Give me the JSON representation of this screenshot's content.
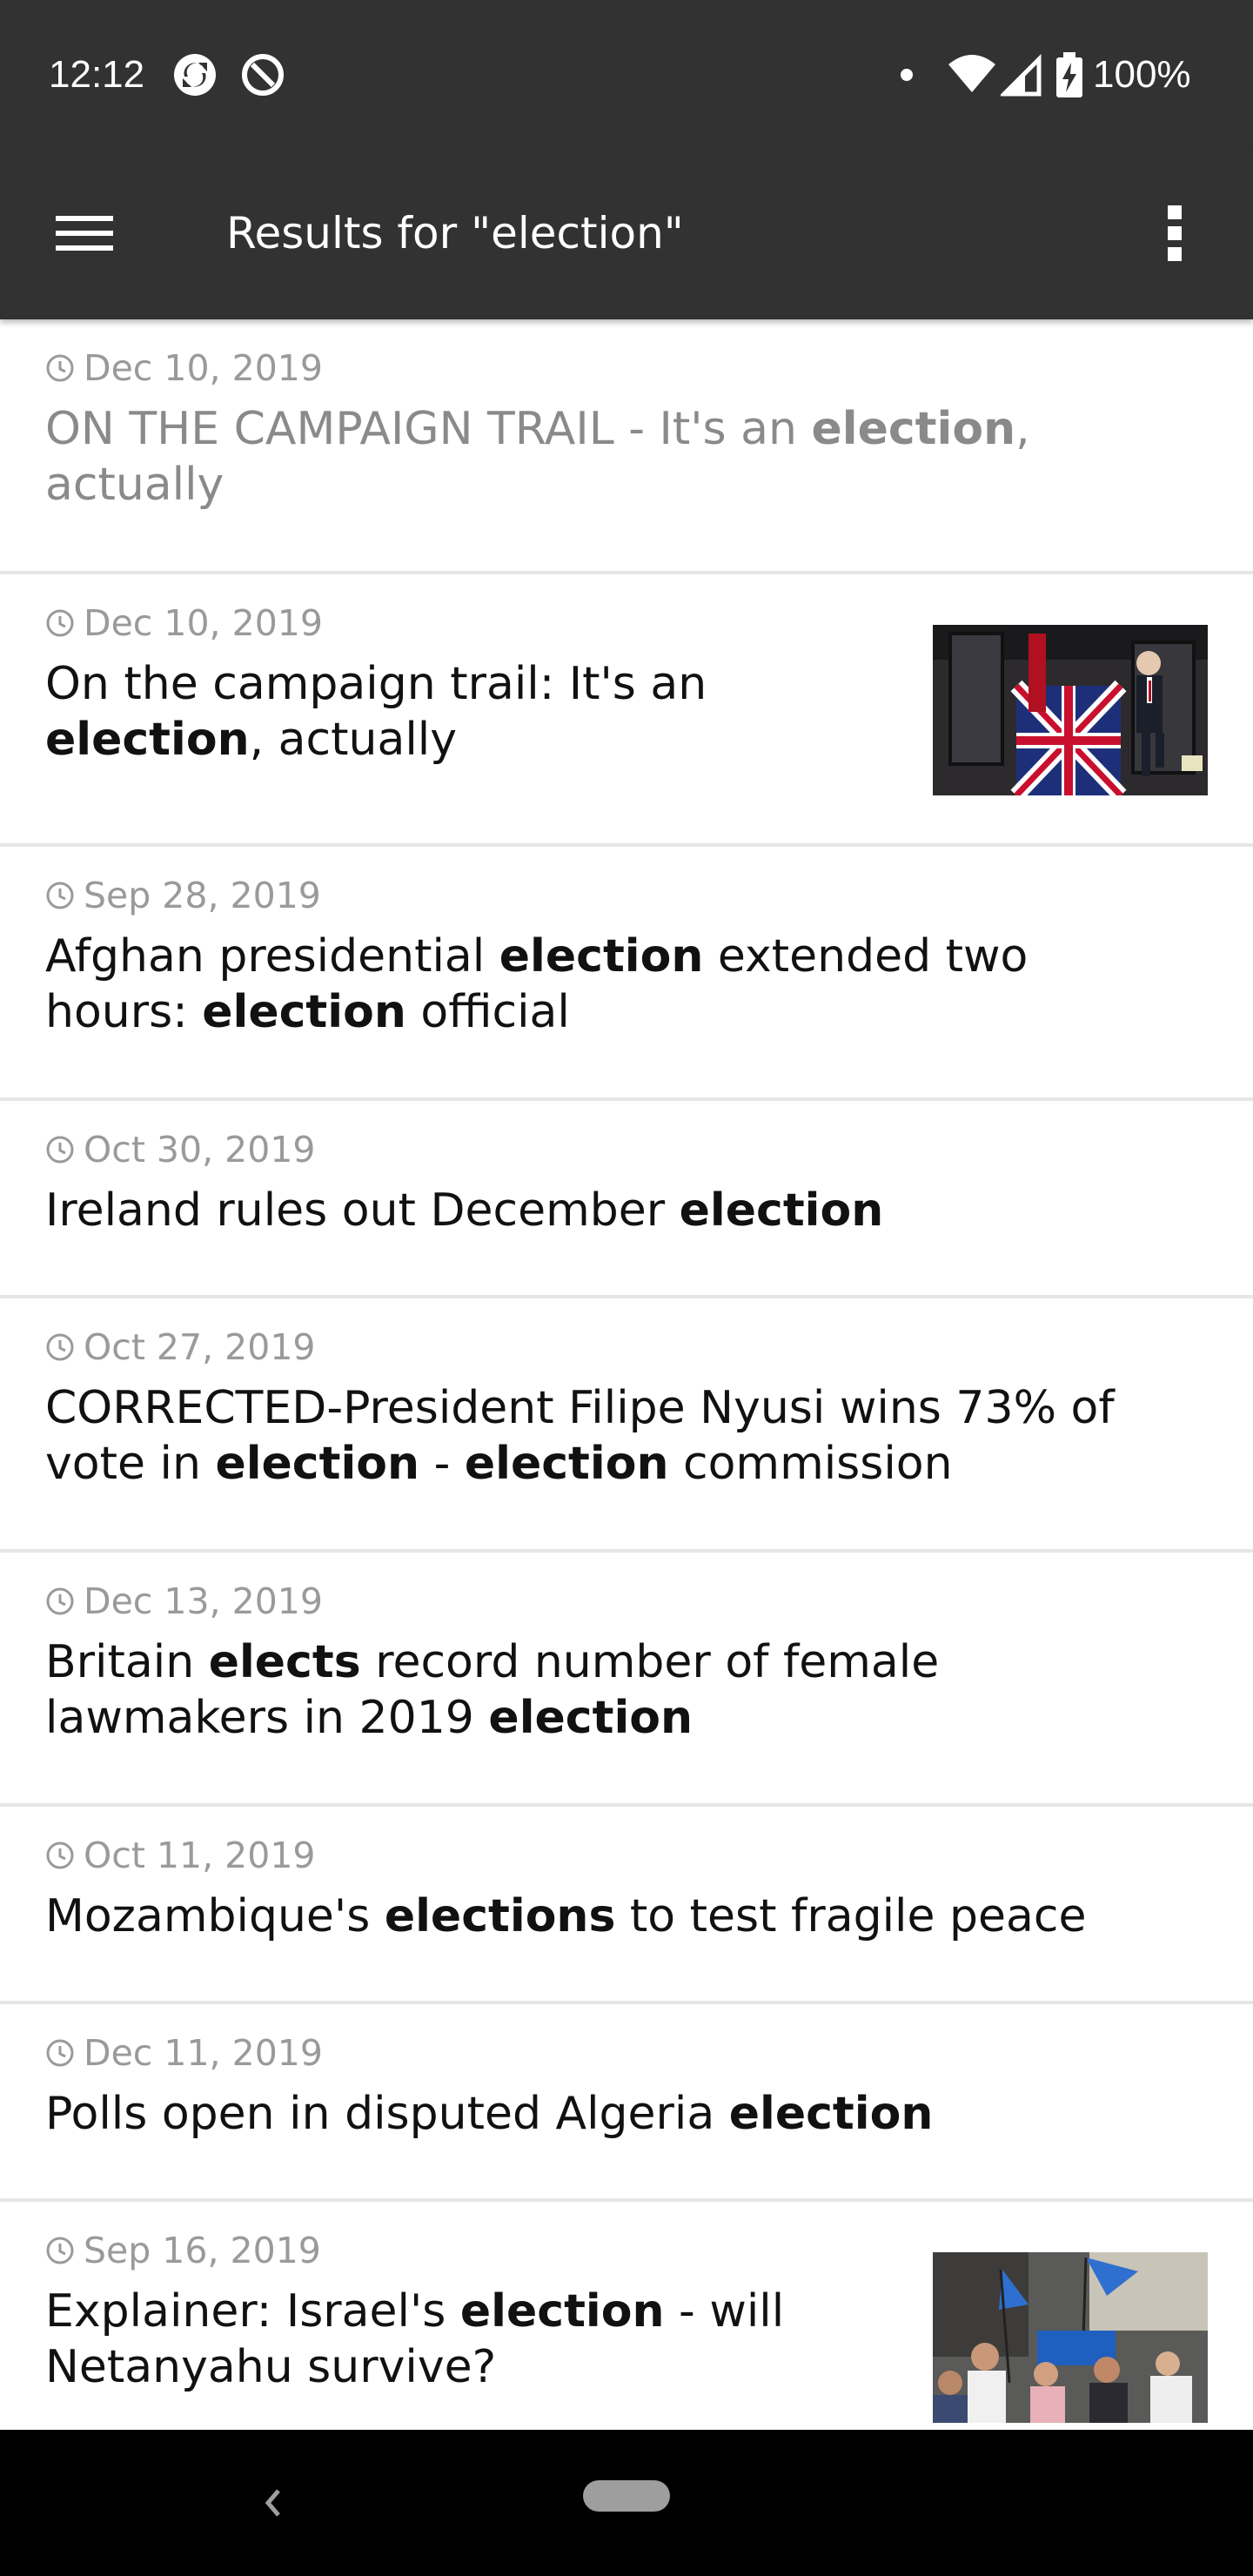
{
  "status_bar": {
    "time": "12:12",
    "battery": "100%"
  },
  "toolbar": {
    "title": "Results for \"election\""
  },
  "results": [
    {
      "date": "Dec 10, 2019",
      "title_parts": [
        {
          "t": "ON THE CAMPAIGN TRAIL - It's an ",
          "b": false
        },
        {
          "t": "election",
          "b": true
        },
        {
          "t": ",",
          "b": false
        },
        {
          "t": "actually",
          "b": false
        }
      ]
    },
    {
      "date": "Dec 10, 2019",
      "title_parts": [
        {
          "t": "On the campaign trail: It's an",
          "b": false
        },
        {
          "t": "election",
          "b": true
        },
        {
          "t": ", actually",
          "b": false
        }
      ]
    },
    {
      "date": "Sep 28, 2019",
      "title_parts": [
        {
          "t": "Afghan presidential ",
          "b": false
        },
        {
          "t": "election",
          "b": true
        },
        {
          "t": " extended two",
          "b": false
        },
        {
          "t": "hours: ",
          "b": false
        },
        {
          "t": "election",
          "b": true
        },
        {
          "t": " official",
          "b": false
        }
      ]
    },
    {
      "date": "Oct 30, 2019",
      "title_parts": [
        {
          "t": "Ireland rules out December ",
          "b": false
        },
        {
          "t": "election",
          "b": true
        }
      ]
    },
    {
      "date": "Oct 27, 2019",
      "title_parts": [
        {
          "t": "CORRECTED-President Filipe Nyusi wins 73% of",
          "b": false
        },
        {
          "t": "vote in ",
          "b": false
        },
        {
          "t": "election",
          "b": true
        },
        {
          "t": " - ",
          "b": false
        },
        {
          "t": "election",
          "b": true
        },
        {
          "t": " commission",
          "b": false
        }
      ]
    },
    {
      "date": "Dec 13, 2019",
      "title_parts": [
        {
          "t": "Britain ",
          "b": false
        },
        {
          "t": "elects",
          "b": true
        },
        {
          "t": " record number of female",
          "b": false
        },
        {
          "t": "lawmakers in 2019 ",
          "b": false
        },
        {
          "t": "election",
          "b": true
        }
      ]
    },
    {
      "date": "Oct 11, 2019",
      "title_parts": [
        {
          "t": "Mozambique's ",
          "b": false
        },
        {
          "t": "elections",
          "b": true
        },
        {
          "t": " to test fragile peace",
          "b": false
        }
      ]
    },
    {
      "date": "Dec 11, 2019",
      "title_parts": [
        {
          "t": "Polls open in disputed Algeria ",
          "b": false
        },
        {
          "t": "election",
          "b": true
        }
      ]
    },
    {
      "date": "Sep 16, 2019",
      "title_parts": [
        {
          "t": "Explainer: Israel's ",
          "b": false
        },
        {
          "t": "election",
          "b": true
        },
        {
          "t": " - will",
          "b": false
        },
        {
          "t": "Netanyahu survive?",
          "b": false
        }
      ]
    }
  ]
}
